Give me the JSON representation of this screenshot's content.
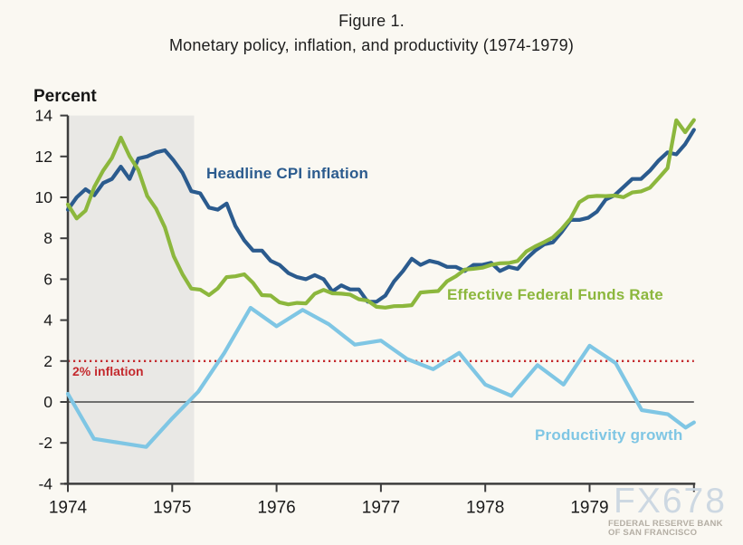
{
  "figure": {
    "title": "Figure 1.",
    "subtitle": "Monetary policy, inflation, and productivity (1974-1979)",
    "axis_unit": "Percent"
  },
  "labels": {
    "cpi": "Headline CPI inflation",
    "ffr": "Effective Federal Funds Rate",
    "productivity": "Productivity growth",
    "target": "2% inflation"
  },
  "watermark": {
    "brand": "FX678",
    "org_line1": "FEDERAL RESERVE BANK",
    "org_line2": "OF SAN FRANCISCO"
  },
  "colors": {
    "cpi": "#2b5b8e",
    "ffr": "#8cb73d",
    "productivity": "#7fc6e4",
    "target_line": "#c42a2e",
    "recession_band": "#e9e8e5",
    "background": "#faf8f2",
    "axis": "#3d3d3d",
    "zero_line": "#6f6f6f",
    "text": "#1a1a1a",
    "watermark_brand": "#cbd7e2",
    "watermark_org": "#b4aea4"
  },
  "chart_data": {
    "type": "line",
    "title": "Monetary policy, inflation, and productivity (1974-1979)",
    "xlabel": "",
    "ylabel": "Percent",
    "ylim": [
      -4,
      14
    ],
    "xlim": [
      1974,
      1980
    ],
    "y_ticks": [
      14,
      12,
      10,
      8,
      6,
      4,
      2,
      0,
      -2,
      -4
    ],
    "x_ticks": [
      1974,
      1975,
      1976,
      1977,
      1978,
      1979
    ],
    "grid": false,
    "legend": "inline-labels",
    "zero_line_y": 0,
    "inflation_target_y": 2,
    "recession_band": [
      1974.0,
      1975.21
    ],
    "series": [
      {
        "id": "cpi",
        "name": "Headline CPI inflation",
        "color": "#2b5b8e",
        "frequency": "monthly",
        "x_start": 1974.0,
        "x_end": 1980.0,
        "values": [
          9.4,
          10.0,
          10.4,
          10.1,
          10.7,
          10.9,
          11.5,
          10.9,
          11.9,
          12.0,
          12.2,
          12.3,
          11.8,
          11.2,
          10.3,
          10.2,
          9.5,
          9.4,
          9.7,
          8.6,
          7.9,
          7.4,
          7.4,
          6.9,
          6.7,
          6.3,
          6.1,
          6.0,
          6.2,
          6.0,
          5.4,
          5.7,
          5.5,
          5.5,
          4.9,
          4.9,
          5.2,
          5.9,
          6.4,
          7.0,
          6.7,
          6.9,
          6.8,
          6.6,
          6.6,
          6.4,
          6.7,
          6.7,
          6.8,
          6.4,
          6.6,
          6.5,
          7.0,
          7.4,
          7.7,
          7.8,
          8.3,
          8.9,
          8.9,
          9.0,
          9.3,
          9.9,
          10.1,
          10.5,
          10.9,
          10.9,
          11.3,
          11.8,
          12.2,
          12.1,
          12.6,
          13.3
        ]
      },
      {
        "id": "ffr",
        "name": "Effective Federal Funds Rate",
        "color": "#8cb73d",
        "frequency": "monthly",
        "x_start": 1974.0,
        "x_end": 1980.0,
        "values": [
          9.65,
          8.97,
          9.35,
          10.51,
          11.31,
          11.93,
          12.92,
          12.01,
          11.34,
          10.06,
          9.45,
          8.53,
          7.13,
          6.24,
          5.54,
          5.49,
          5.22,
          5.55,
          6.1,
          6.14,
          6.24,
          5.82,
          5.22,
          5.2,
          4.87,
          4.77,
          4.84,
          4.82,
          5.29,
          5.48,
          5.31,
          5.29,
          5.25,
          5.02,
          4.95,
          4.65,
          4.61,
          4.68,
          4.69,
          4.73,
          5.35,
          5.39,
          5.42,
          5.9,
          6.14,
          6.47,
          6.51,
          6.56,
          6.7,
          6.78,
          6.79,
          6.89,
          7.36,
          7.6,
          7.81,
          8.04,
          8.45,
          8.96,
          9.76,
          10.03,
          10.07,
          10.06,
          10.09,
          10.01,
          10.24,
          10.29,
          10.47,
          10.94,
          11.43,
          13.77,
          13.18,
          13.78
        ]
      },
      {
        "id": "productivity",
        "name": "Productivity growth",
        "color": "#7fc6e4",
        "frequency": "quarterly",
        "points": [
          [
            1974.0,
            0.4
          ],
          [
            1974.25,
            -1.8
          ],
          [
            1974.5,
            -2.0
          ],
          [
            1974.75,
            -2.2
          ],
          [
            1975.0,
            -0.8
          ],
          [
            1975.25,
            0.5
          ],
          [
            1975.5,
            2.4
          ],
          [
            1975.75,
            4.6
          ],
          [
            1976.0,
            3.7
          ],
          [
            1976.25,
            4.5
          ],
          [
            1976.5,
            3.8
          ],
          [
            1976.75,
            2.8
          ],
          [
            1977.0,
            3.0
          ],
          [
            1977.25,
            2.1
          ],
          [
            1977.5,
            1.6
          ],
          [
            1977.75,
            2.4
          ],
          [
            1978.0,
            0.85
          ],
          [
            1978.25,
            0.3
          ],
          [
            1978.5,
            1.8
          ],
          [
            1978.75,
            0.85
          ],
          [
            1979.0,
            2.75
          ],
          [
            1979.25,
            1.9
          ],
          [
            1979.5,
            -0.4
          ],
          [
            1979.75,
            -0.6
          ],
          [
            1979.92,
            -1.25
          ],
          [
            1980.0,
            -1.0
          ]
        ]
      }
    ]
  }
}
